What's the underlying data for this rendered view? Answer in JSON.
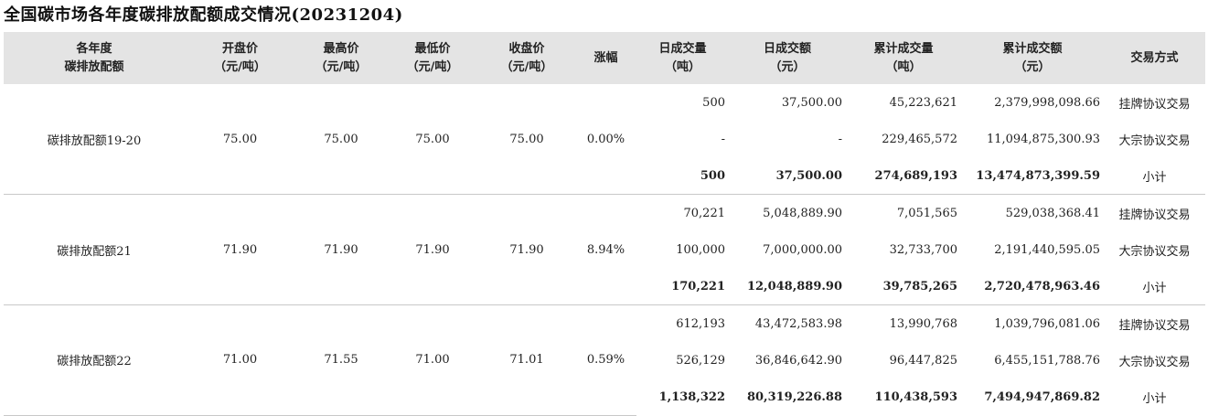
{
  "title": "全国碳市场各年度碳排放配额成交情况(20231204)",
  "headers": [
    [
      "各年度",
      "碳排放配额"
    ],
    [
      "开盘价",
      "（元/吨）"
    ],
    [
      "最高价",
      "（元/吨）"
    ],
    [
      "最低价",
      "（元/吨）"
    ],
    [
      "收盘价",
      "（元/吨）"
    ],
    [
      "涨幅"
    ],
    [
      "日成交量",
      "（吨）"
    ],
    [
      "日成交额",
      "（元）"
    ],
    [
      "累计成交量",
      "（吨）"
    ],
    [
      "累计成交额",
      "（元）"
    ],
    [
      "交易方式"
    ]
  ],
  "groups": [
    {
      "name": "碳排放配额19-20",
      "open": "75.00",
      "high": "75.00",
      "low": "75.00",
      "close": "75.00",
      "change": "0.00%",
      "rows": [
        {
          "daily_vol": "500",
          "daily_amt": "37,500.00",
          "cum_vol": "45,223,621",
          "cum_amt": "2,379,998,098.66",
          "mode": "挂牌协议交易"
        },
        {
          "daily_vol": "-",
          "daily_amt": "-",
          "cum_vol": "229,465,572",
          "cum_amt": "11,094,875,300.93",
          "mode": "大宗协议交易"
        },
        {
          "daily_vol": "500",
          "daily_amt": "37,500.00",
          "cum_vol": "274,689,193",
          "cum_amt": "13,474,873,399.59",
          "mode": "小计"
        }
      ]
    },
    {
      "name": "碳排放配额21",
      "open": "71.90",
      "high": "71.90",
      "low": "71.90",
      "close": "71.90",
      "change": "8.94%",
      "rows": [
        {
          "daily_vol": "70,221",
          "daily_amt": "5,048,889.90",
          "cum_vol": "7,051,565",
          "cum_amt": "529,038,368.41",
          "mode": "挂牌协议交易"
        },
        {
          "daily_vol": "100,000",
          "daily_amt": "7,000,000.00",
          "cum_vol": "32,733,700",
          "cum_amt": "2,191,440,595.05",
          "mode": "大宗协议交易"
        },
        {
          "daily_vol": "170,221",
          "daily_amt": "12,048,889.90",
          "cum_vol": "39,785,265",
          "cum_amt": "2,720,478,963.46",
          "mode": "小计"
        }
      ]
    },
    {
      "name": "碳排放配额22",
      "open": "71.00",
      "high": "71.55",
      "low": "71.00",
      "close": "71.01",
      "change": "0.59%",
      "rows": [
        {
          "daily_vol": "612,193",
          "daily_amt": "43,472,583.98",
          "cum_vol": "13,990,768",
          "cum_amt": "1,039,796,081.06",
          "mode": "挂牌协议交易"
        },
        {
          "daily_vol": "526,129",
          "daily_amt": "36,846,642.90",
          "cum_vol": "96,447,825",
          "cum_amt": "6,455,151,788.76",
          "mode": "大宗协议交易"
        },
        {
          "daily_vol": "1,138,322",
          "daily_amt": "80,319,226.88",
          "cum_vol": "110,438,593",
          "cum_amt": "7,494,947,869.82",
          "mode": "小计"
        }
      ]
    }
  ]
}
